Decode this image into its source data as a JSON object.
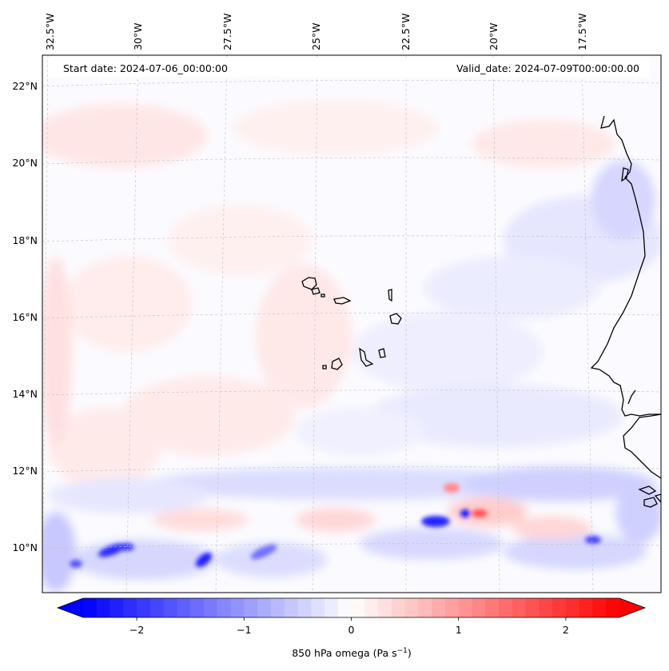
{
  "header": {
    "start_date": "Start date: 2024-07-06_00:00:00",
    "valid_date": "Valid_date: 2024-07-09T00:00:00.00"
  },
  "axes": {
    "lon_labels": [
      "32.5°W",
      "30°W",
      "27.5°W",
      "25°W",
      "22.5°W",
      "20°W",
      "17.5°W"
    ],
    "lat_labels": [
      "22°N",
      "20°N",
      "18°N",
      "16°N",
      "14°N",
      "12°N",
      "10°N"
    ]
  },
  "colorbar": {
    "ticks": [
      "−2",
      "−1",
      "0",
      "1",
      "2"
    ],
    "tick_values": [
      -2,
      -1,
      0,
      1,
      2
    ],
    "vmin": -2.5,
    "vmax": 2.5,
    "label_main": "850 hPa omega (Pa s",
    "label_sup": "−1",
    "label_tail": ")"
  },
  "colors": {
    "negative": "#0000ff",
    "neutral": "#ffffff",
    "positive": "#ff0000",
    "coastline": "#000000",
    "gridline": "#b0b0b0"
  }
}
